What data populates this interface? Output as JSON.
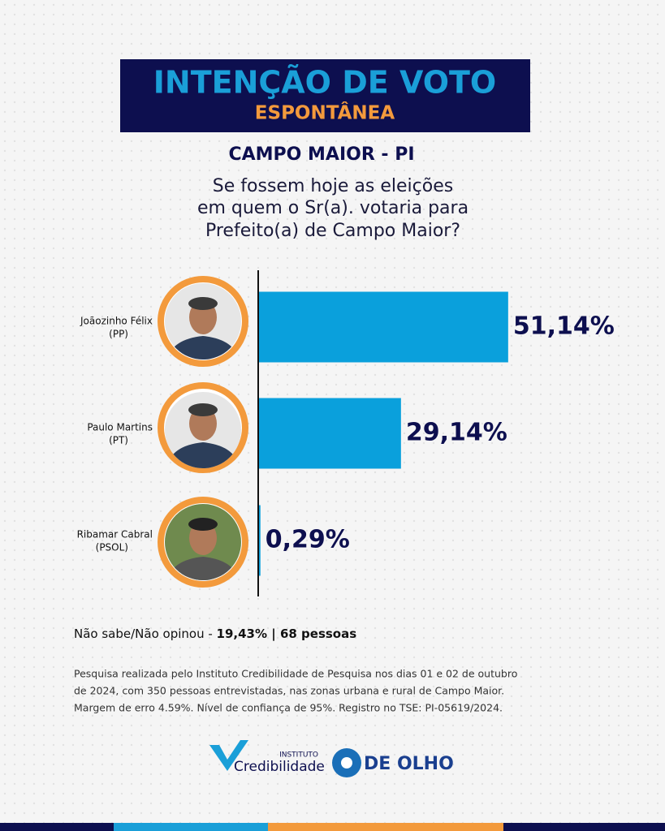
{
  "header": {
    "title": "INTENÇÃO DE VOTO",
    "subtitle": "ESPONTÂNEA",
    "location": "CAMPO MAIOR - PI",
    "question": [
      "Se fossem hoje as eleições",
      "em quem o Sr(a). votaria para",
      "Prefeito(a) de Campo Maior?"
    ]
  },
  "chart_data": {
    "type": "bar",
    "orientation": "horizontal",
    "categories": [
      "Joãozinho Félix",
      "Paulo Martins",
      "Ribamar Cabral"
    ],
    "parties": [
      "(PP)",
      "(PT)",
      "(PSOL)"
    ],
    "values": [
      51.14,
      29.14,
      0.29
    ],
    "value_labels": [
      "51,14%",
      "29,14%",
      "0,29%"
    ],
    "color": "#0aa0dc"
  },
  "footer": {
    "undecided_label": "Não sabe/Não opinou - ",
    "undecided_value": "19,43% | 68 pessoas",
    "note": [
      "Pesquisa realizada pelo  Instituto Credibilidade de Pesquisa nos dias 01 e 02 de outubro",
      "de 2024, com 350 pessoas entrevistadas, nas zonas urbana e rural de Campo Maior.",
      "Margem de erro 4.59%. Nível de confiança de 95%. Registro no TSE:   PI-05619/2024."
    ],
    "logos": {
      "institute_small": "INSTITUTO",
      "institute": "Credibilidade",
      "outlet": "DE OLHO"
    }
  }
}
